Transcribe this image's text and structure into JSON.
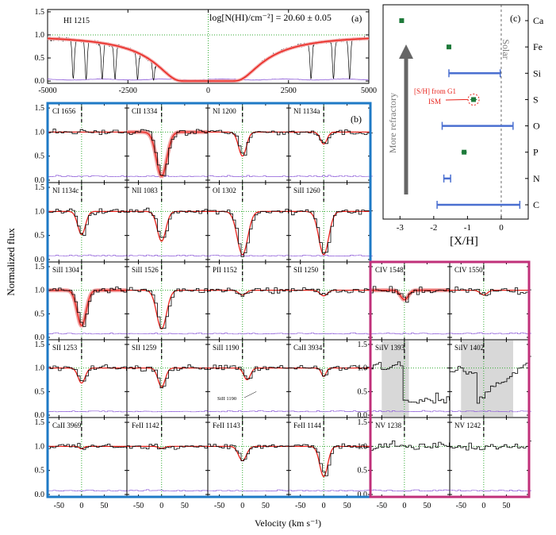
{
  "chart_data": [
    {
      "id": "a",
      "type": "line",
      "panel_label": "(a)",
      "title": "HI 1215",
      "annotation": "log[N(HI)/cm⁻²] = 20.60 ± 0.05",
      "xlabel": "",
      "ylabel": "Normalized flux",
      "xlim": [
        -5000,
        5000
      ],
      "ylim": [
        -0.05,
        1.55
      ],
      "xticks": [
        -5000,
        -2500,
        0,
        2500,
        5000
      ],
      "yticks": [
        0.0,
        0.5,
        1.0,
        1.5
      ],
      "ytick_labels": [
        "0.0",
        "0.5",
        "1.0",
        "1.5"
      ],
      "gridlines": {
        "x": [
          0
        ],
        "y": [
          1.0
        ]
      },
      "colors": {
        "data": "#000000",
        "model": "#e8231c",
        "error": "#8c5ad8",
        "grid": "#33aa33"
      },
      "model": {
        "core_half_width_kms": 500,
        "damping_scale_kms": 900
      },
      "absorption_lines_kms": [
        -4200,
        -3800,
        -3300,
        -2900,
        -2200,
        -1700,
        3200,
        3900,
        4400
      ]
    },
    {
      "id": "b",
      "type": "line",
      "panel_label": "(b)",
      "xlabel": "Velocity (km s⁻¹)",
      "ylabel": "Normalized flux",
      "xlim": [
        -75,
        100
      ],
      "ylim": [
        -0.05,
        1.6
      ],
      "xticks": [
        -50,
        0,
        50
      ],
      "xtick_labels": [
        "-50",
        "0",
        "50"
      ],
      "yticks": [
        0.0,
        0.5,
        1.0,
        1.5
      ],
      "ytick_labels": [
        "0.0",
        "0.5",
        "1.0",
        "1.5"
      ],
      "colors": {
        "low_ion_frame": "#1f7ac6",
        "high_ion_frame": "#c0307a",
        "model": "#e8231c",
        "model_band": "#f2a0a0",
        "error": "#8c5ad8",
        "grid": "#33aa33",
        "shade": "#d8d8d8"
      },
      "transitions": [
        {
          "row": 0,
          "col": 0,
          "label": "CI 1656",
          "depth": 0.0,
          "width": 12,
          "center": 0
        },
        {
          "row": 0,
          "col": 1,
          "label": "CII 1334",
          "depth": 0.92,
          "width": 16,
          "center": 0,
          "band": true
        },
        {
          "row": 0,
          "col": 2,
          "label": "NI 1200",
          "depth": 0.5,
          "width": 12,
          "center": 0
        },
        {
          "row": 0,
          "col": 3,
          "label": "NI 1134a",
          "depth": 0.25,
          "width": 10,
          "center": 0
        },
        {
          "row": 1,
          "col": 0,
          "label": "NI 1134c",
          "depth": 0.48,
          "width": 12,
          "center": 0
        },
        {
          "row": 1,
          "col": 1,
          "label": "NII 1083",
          "depth": 0.62,
          "width": 13,
          "center": 0
        },
        {
          "row": 1,
          "col": 2,
          "label": "OI 1302",
          "depth": 0.9,
          "width": 16,
          "center": 0
        },
        {
          "row": 1,
          "col": 3,
          "label": "SiII 1260",
          "depth": 0.9,
          "width": 15,
          "center": 0
        },
        {
          "row": 2,
          "col": 0,
          "label": "SiII 1304",
          "depth": 0.75,
          "width": 14,
          "center": 0,
          "band": true
        },
        {
          "row": 2,
          "col": 1,
          "label": "SiII 1526",
          "depth": 0.82,
          "width": 15,
          "center": 0
        },
        {
          "row": 2,
          "col": 2,
          "label": "PII 1152",
          "depth": 0.1,
          "width": 11,
          "center": 0
        },
        {
          "row": 2,
          "col": 3,
          "label": "SII 1250",
          "depth": 0.12,
          "width": 11,
          "center": 0
        },
        {
          "row": 2,
          "col": 4,
          "label": "CIV 1548",
          "depth": 0.2,
          "width": 12,
          "center": 0,
          "band": true,
          "high": true
        },
        {
          "row": 2,
          "col": 5,
          "label": "CIV 1550",
          "depth": 0.1,
          "width": 11,
          "center": 0,
          "high": true
        },
        {
          "row": 3,
          "col": 0,
          "label": "SII 1253",
          "depth": 0.32,
          "width": 11,
          "center": 0
        },
        {
          "row": 3,
          "col": 1,
          "label": "SII 1259",
          "depth": 0.4,
          "width": 11,
          "center": 0
        },
        {
          "row": 3,
          "col": 2,
          "label": "SiII 1190",
          "depth": 0.25,
          "width": 10,
          "center": 10,
          "blend_label": "SiII 1190"
        },
        {
          "row": 3,
          "col": 3,
          "label": "CaII 3934",
          "depth": 0.18,
          "width": 7,
          "center": 0
        },
        {
          "row": 3,
          "col": 4,
          "label": "SiIV 1393",
          "depth": 0.0,
          "width": 10,
          "center": 0,
          "high": true,
          "shade": [
            -50,
            10
          ],
          "nomodel": true
        },
        {
          "row": 3,
          "col": 5,
          "label": "SiIV 1402",
          "depth": 0.0,
          "width": 10,
          "center": 0,
          "high": true,
          "shade": [
            -50,
            65
          ],
          "nomodel": true
        },
        {
          "row": 4,
          "col": 0,
          "label": "CaII 3969",
          "depth": 0.05,
          "width": 7,
          "center": 0
        },
        {
          "row": 4,
          "col": 1,
          "label": "FeII 1142",
          "depth": 0.04,
          "width": 9,
          "center": 0
        },
        {
          "row": 4,
          "col": 2,
          "label": "FeII 1143",
          "depth": 0.3,
          "width": 12,
          "center": 0
        },
        {
          "row": 4,
          "col": 3,
          "label": "FeII 1144",
          "depth": 0.63,
          "width": 12,
          "center": 0
        },
        {
          "row": 4,
          "col": 4,
          "label": "NV 1238",
          "depth": 0.0,
          "width": 10,
          "center": 0,
          "high": true,
          "nomodel": true
        },
        {
          "row": 4,
          "col": 5,
          "label": "NV 1242",
          "depth": 0.0,
          "width": 10,
          "center": 0,
          "high": true,
          "nomodel": true
        }
      ]
    },
    {
      "id": "c",
      "type": "scatter",
      "panel_label": "(c)",
      "xlabel": "[X/H]",
      "xlim": [
        -3.5,
        0.8
      ],
      "xticks": [
        -3,
        -2,
        -1,
        0
      ],
      "xtick_labels": [
        "-3",
        "-2",
        "-1",
        "0"
      ],
      "categories": [
        "Ca",
        "Fe",
        "Si",
        "S",
        "O",
        "P",
        "N",
        "C"
      ],
      "points": [
        {
          "element": "Ca",
          "value": -2.95,
          "err_lo": 0.05,
          "err_hi": 0.05,
          "kind": "point"
        },
        {
          "element": "Fe",
          "value": -1.55,
          "err_lo": 0.06,
          "err_hi": 0.06,
          "kind": "point"
        },
        {
          "element": "Si",
          "value": -1.55,
          "err_lo": 0.0,
          "err_hi": 1.52,
          "kind": "range"
        },
        {
          "element": "S",
          "value": -0.82,
          "err_lo": 0.1,
          "err_hi": 0.1,
          "kind": "point"
        },
        {
          "element": "O",
          "value": -1.75,
          "err_lo": 0.0,
          "err_hi": 2.1,
          "kind": "range"
        },
        {
          "element": "P",
          "value": -1.1,
          "err_lo": 0.08,
          "err_hi": 0.08,
          "kind": "point"
        },
        {
          "element": "N",
          "value": -1.7,
          "err_lo": 0.0,
          "err_hi": 0.2,
          "kind": "range"
        },
        {
          "element": "C",
          "value": -1.9,
          "err_lo": 0.0,
          "err_hi": 2.45,
          "kind": "range"
        }
      ],
      "solar_label": "Solar",
      "solar_value": 0,
      "arrow_label": "More refractory",
      "annotation_lines": [
        "[S/H] from G1",
        "ISM"
      ],
      "colors": {
        "point": "#1e7a3a",
        "range": "#4a6fd0",
        "annotation": "#e8231c",
        "arrow": "#666666"
      }
    }
  ]
}
